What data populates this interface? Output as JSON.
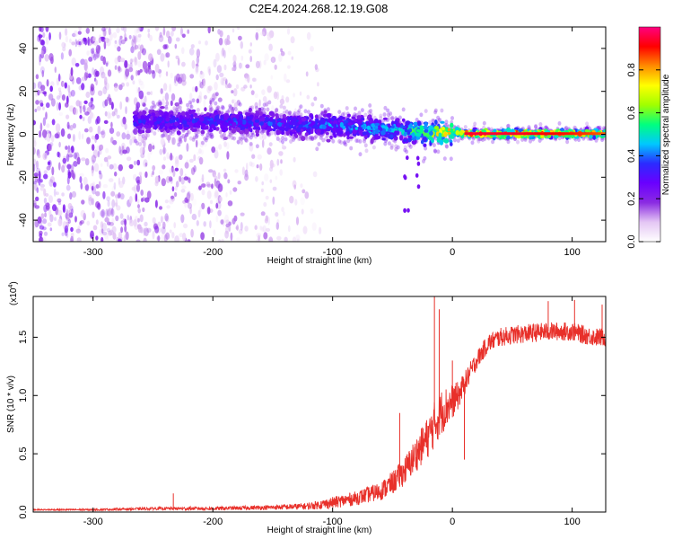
{
  "title": "C2E4.2024.268.12.19.G08",
  "chart_data": [
    {
      "type": "heatmap",
      "xlabel": "Height of straight line (km)",
      "ylabel": "Frequency (Hz)",
      "xlim": [
        -350,
        128
      ],
      "ylim": [
        -50,
        50
      ],
      "xticks": [
        -300,
        -200,
        -100,
        0,
        100
      ],
      "yticks": [
        -40,
        -20,
        0,
        20,
        40
      ],
      "colorbar": {
        "label": "Normalized spectral amplitude",
        "range": [
          0.0,
          1.0
        ],
        "ticks": [
          "0.0",
          "0.2",
          "0.4",
          "0.6",
          "0.8"
        ],
        "tick_values": [
          0.0,
          0.2,
          0.4,
          0.6,
          0.8
        ],
        "colors": [
          "#ffffff",
          "#e4c6f4",
          "#8a2be2",
          "#6a00ff",
          "#2b2bff",
          "#00c8ff",
          "#00ff7f",
          "#a0ff00",
          "#ffff00",
          "#ff8c00",
          "#ff0000",
          "#ff0080"
        ]
      },
      "ridge": {
        "x": [
          -265,
          -200,
          -150,
          -100,
          -50,
          -25,
          -10,
          0,
          10,
          50,
          100,
          128
        ],
        "y": [
          6,
          6,
          5,
          4,
          2,
          1,
          1,
          1,
          0.3,
          0.3,
          0.3,
          0.3
        ],
        "peak_amplitude": [
          0.3,
          0.35,
          0.35,
          0.4,
          0.45,
          0.6,
          0.8,
          0.85,
          0.95,
          0.95,
          0.9,
          0.85
        ]
      },
      "scatter_region": {
        "x": [
          -350,
          -110
        ],
        "y": [
          -50,
          50
        ],
        "amplitude": 0.15
      }
    },
    {
      "type": "line",
      "xlabel": "Height of straight line (km)",
      "ylabel": "SNR (10 * v/v)",
      "yscale_label": "(x10",
      "yscale_exp": "4",
      "yscale_close": ")",
      "xlim": [
        -350,
        128
      ],
      "ylim": [
        0,
        1.85
      ],
      "xticks": [
        -300,
        -200,
        -100,
        0,
        100
      ],
      "yticks": [
        "0.0",
        "0.5",
        "1.0",
        "1.5"
      ],
      "ytick_values": [
        0.0,
        0.5,
        1.0,
        1.5
      ],
      "color": "#e8302a",
      "series": [
        {
          "x": [
            -350,
            -300,
            -250,
            -200,
            -150,
            -120,
            -100,
            -80,
            -60,
            -50,
            -40,
            -30,
            -20,
            -15,
            -10,
            -5,
            0,
            5,
            10,
            20,
            30,
            40,
            50,
            60,
            80,
            100,
            110,
            120,
            128
          ],
          "y": [
            0.02,
            0.02,
            0.03,
            0.03,
            0.04,
            0.05,
            0.08,
            0.12,
            0.18,
            0.25,
            0.35,
            0.5,
            0.65,
            0.75,
            0.85,
            0.9,
            0.95,
            1.0,
            1.1,
            1.3,
            1.45,
            1.5,
            1.52,
            1.53,
            1.55,
            1.55,
            1.52,
            1.5,
            1.5
          ],
          "noise": [
            0.005,
            0.008,
            0.012,
            0.015,
            0.02,
            0.03,
            0.05,
            0.06,
            0.08,
            0.1,
            0.12,
            0.15,
            0.18,
            0.2,
            0.2,
            0.18,
            0.15,
            0.12,
            0.1,
            0.08,
            0.08,
            0.08,
            0.08,
            0.08,
            0.08,
            0.08,
            0.08,
            0.08,
            0.08
          ]
        }
      ],
      "spikes": [
        {
          "x": -233,
          "y": 0.16
        },
        {
          "x": -44,
          "y": 0.85
        },
        {
          "x": -15,
          "y": 1.85
        },
        {
          "x": -11,
          "y": 1.74
        },
        {
          "x": 0,
          "y": 1.3
        },
        {
          "x": 10,
          "y": 0.45
        },
        {
          "x": 80,
          "y": 1.81
        },
        {
          "x": 102,
          "y": 1.82
        },
        {
          "x": 125,
          "y": 1.78
        }
      ]
    }
  ]
}
